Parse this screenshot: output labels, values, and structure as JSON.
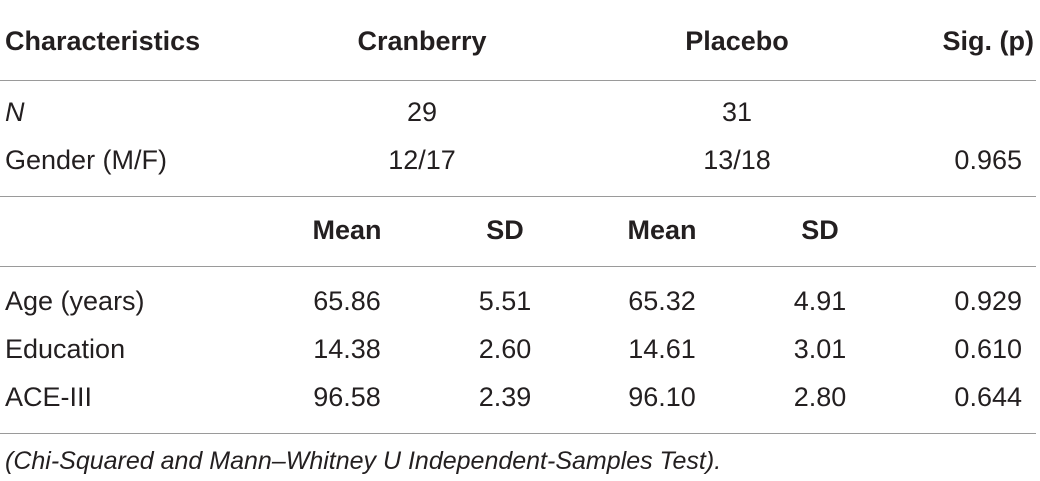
{
  "table": {
    "headers": {
      "characteristics": "Characteristics",
      "cranberry": "Cranberry",
      "placebo": "Placebo",
      "sig": "Sig. (p)"
    },
    "rows_top": [
      {
        "label": "N",
        "cranberry": "29",
        "placebo": "31",
        "sig": ""
      },
      {
        "label": "Gender (M/F)",
        "cranberry": "12/17",
        "placebo": "13/18",
        "sig": "0.965"
      }
    ],
    "subheaders": {
      "cranberry_mean": "Mean",
      "cranberry_sd": "SD",
      "placebo_mean": "Mean",
      "placebo_sd": "SD"
    },
    "rows_bottom": [
      {
        "label": "Age (years)",
        "c_mean": "65.86",
        "c_sd": "5.51",
        "p_mean": "65.32",
        "p_sd": "4.91",
        "sig": "0.929"
      },
      {
        "label": "Education",
        "c_mean": "14.38",
        "c_sd": "2.60",
        "p_mean": "14.61",
        "p_sd": "3.01",
        "sig": "0.610"
      },
      {
        "label": "ACE-III",
        "c_mean": "96.58",
        "c_sd": "2.39",
        "p_mean": "96.10",
        "p_sd": "2.80",
        "sig": "0.644"
      }
    ],
    "footnote": "(Chi-Squared and Mann–Whitney U Independent-Samples Test)."
  }
}
